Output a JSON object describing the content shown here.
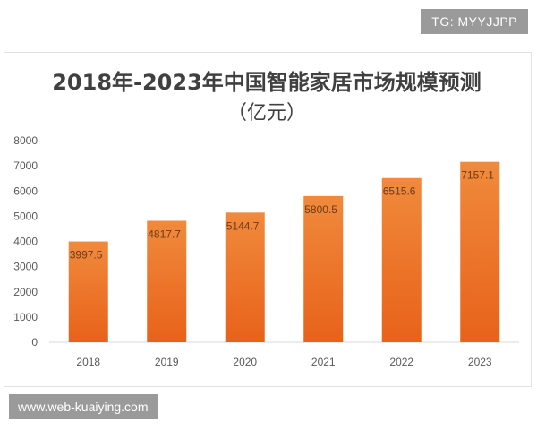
{
  "watermarks": {
    "tg": "TG: MYYJJPP",
    "website": "www.web-kuaiying.com"
  },
  "colors": {
    "bar_top": "#f08a3c",
    "bar_bottom": "#e8621a",
    "axis_text": "#595959",
    "label_text": "#6b3a1a",
    "gridline": "#d9d9d9"
  },
  "chart_data": {
    "type": "bar",
    "title": "2018年-2023年中国智能家居市场规模预测",
    "subtitle": "（亿元）",
    "xlabel": "",
    "ylabel": "",
    "categories": [
      "2018",
      "2019",
      "2020",
      "2021",
      "2022",
      "2023"
    ],
    "values": [
      3997.5,
      4817.7,
      5144.7,
      5800.5,
      6515.6,
      7157.1
    ],
    "value_labels": [
      "3997.5",
      "4817.7",
      "5144.7",
      "5800.5",
      "6515.6",
      "7157.1"
    ],
    "ylim": [
      0,
      8000
    ],
    "yticks": [
      0,
      1000,
      2000,
      3000,
      4000,
      5000,
      6000,
      7000,
      8000
    ],
    "grid": false,
    "legend": "none"
  }
}
